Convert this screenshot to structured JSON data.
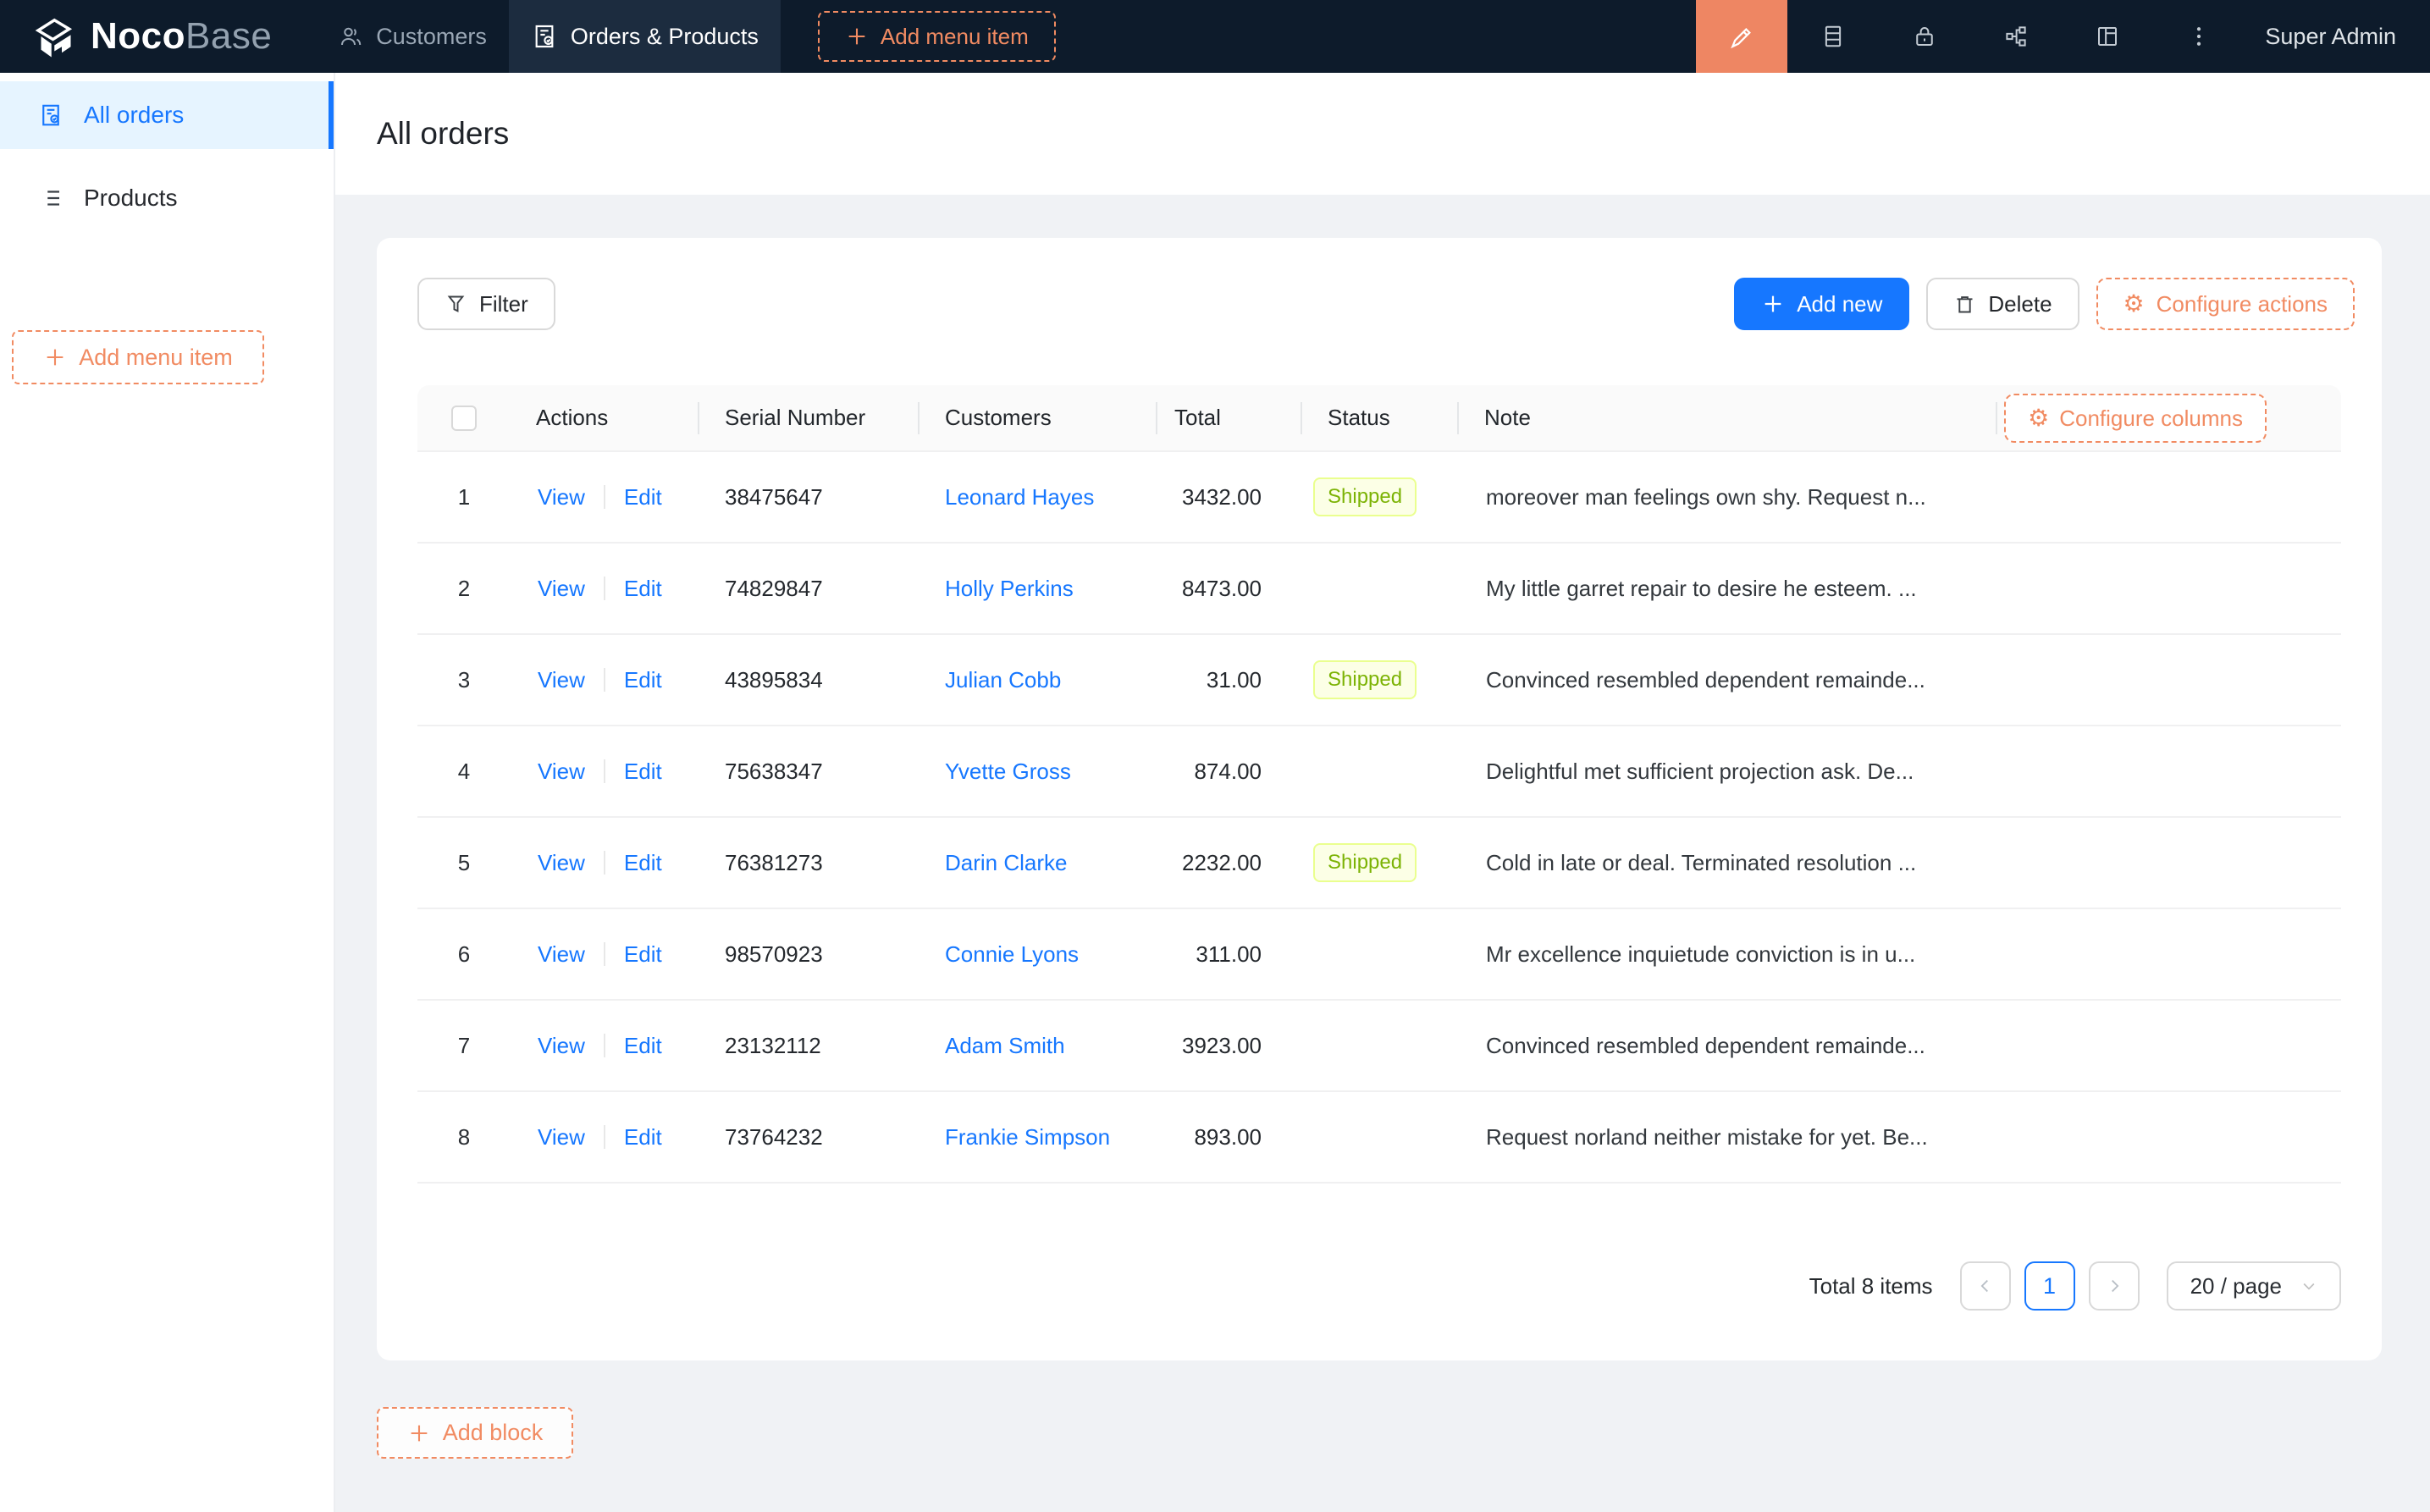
{
  "topbar": {
    "brand_bold": "Noco",
    "brand_light": "Base",
    "nav": [
      {
        "label": "Customers",
        "active": false
      },
      {
        "label": "Orders & Products",
        "active": true
      }
    ],
    "add_menu_item": "Add menu item",
    "user": "Super Admin"
  },
  "sidebar": {
    "items": [
      {
        "label": "All orders",
        "active": true
      },
      {
        "label": "Products",
        "active": false
      }
    ],
    "add_menu_item": "Add menu item"
  },
  "page": {
    "title": "All orders"
  },
  "toolbar": {
    "filter": "Filter",
    "add_new": "Add new",
    "delete": "Delete",
    "configure_actions": "Configure actions"
  },
  "table": {
    "configure_columns": "Configure columns",
    "columns": [
      "Actions",
      "Serial Number",
      "Customers",
      "Total",
      "Status",
      "Note"
    ],
    "action_view": "View",
    "action_edit": "Edit",
    "rows": [
      {
        "index": "1",
        "serial": "38475647",
        "customer": "Leonard Hayes",
        "total": "3432.00",
        "status": "Shipped",
        "note": "moreover man feelings own shy. Request n..."
      },
      {
        "index": "2",
        "serial": "74829847",
        "customer": "Holly Perkins",
        "total": "8473.00",
        "status": "",
        "note": "My little garret repair to desire he esteem. ..."
      },
      {
        "index": "3",
        "serial": "43895834",
        "customer": "Julian Cobb",
        "total": "31.00",
        "status": "Shipped",
        "note": "Convinced resembled dependent remainde..."
      },
      {
        "index": "4",
        "serial": "75638347",
        "customer": "Yvette Gross",
        "total": "874.00",
        "status": "",
        "note": "Delightful met sufficient projection ask. De..."
      },
      {
        "index": "5",
        "serial": "76381273",
        "customer": "Darin Clarke",
        "total": "2232.00",
        "status": "Shipped",
        "note": "Cold in late or deal. Terminated resolution ..."
      },
      {
        "index": "6",
        "serial": "98570923",
        "customer": "Connie Lyons",
        "total": "311.00",
        "status": "",
        "note": "Mr excellence inquietude conviction is in u..."
      },
      {
        "index": "7",
        "serial": "23132112",
        "customer": "Adam Smith",
        "total": "3923.00",
        "status": "",
        "note": "Convinced resembled dependent remainde..."
      },
      {
        "index": "8",
        "serial": "73764232",
        "customer": "Frankie Simpson",
        "total": "893.00",
        "status": "",
        "note": "Request norland neither mistake for yet. Be..."
      }
    ]
  },
  "pagination": {
    "total": "Total 8 items",
    "current_page": "1",
    "page_size": "20 / page"
  },
  "footer": {
    "add_block": "Add block"
  },
  "colors": {
    "topbar_bg": "#0d1b2b",
    "topbar_active_tab": "#1c2c3f",
    "accent_orange": "#f18b62",
    "accent_orange_block": "#ee8663",
    "accent_blue": "#1677ff",
    "sidebar_active_bg": "#e6f4ff",
    "badge_bg": "#fcffe6",
    "badge_border": "#eaff8f",
    "badge_text": "#7cb305",
    "page_bg": "#f0f2f5",
    "table_header_bg": "#fafafa"
  }
}
